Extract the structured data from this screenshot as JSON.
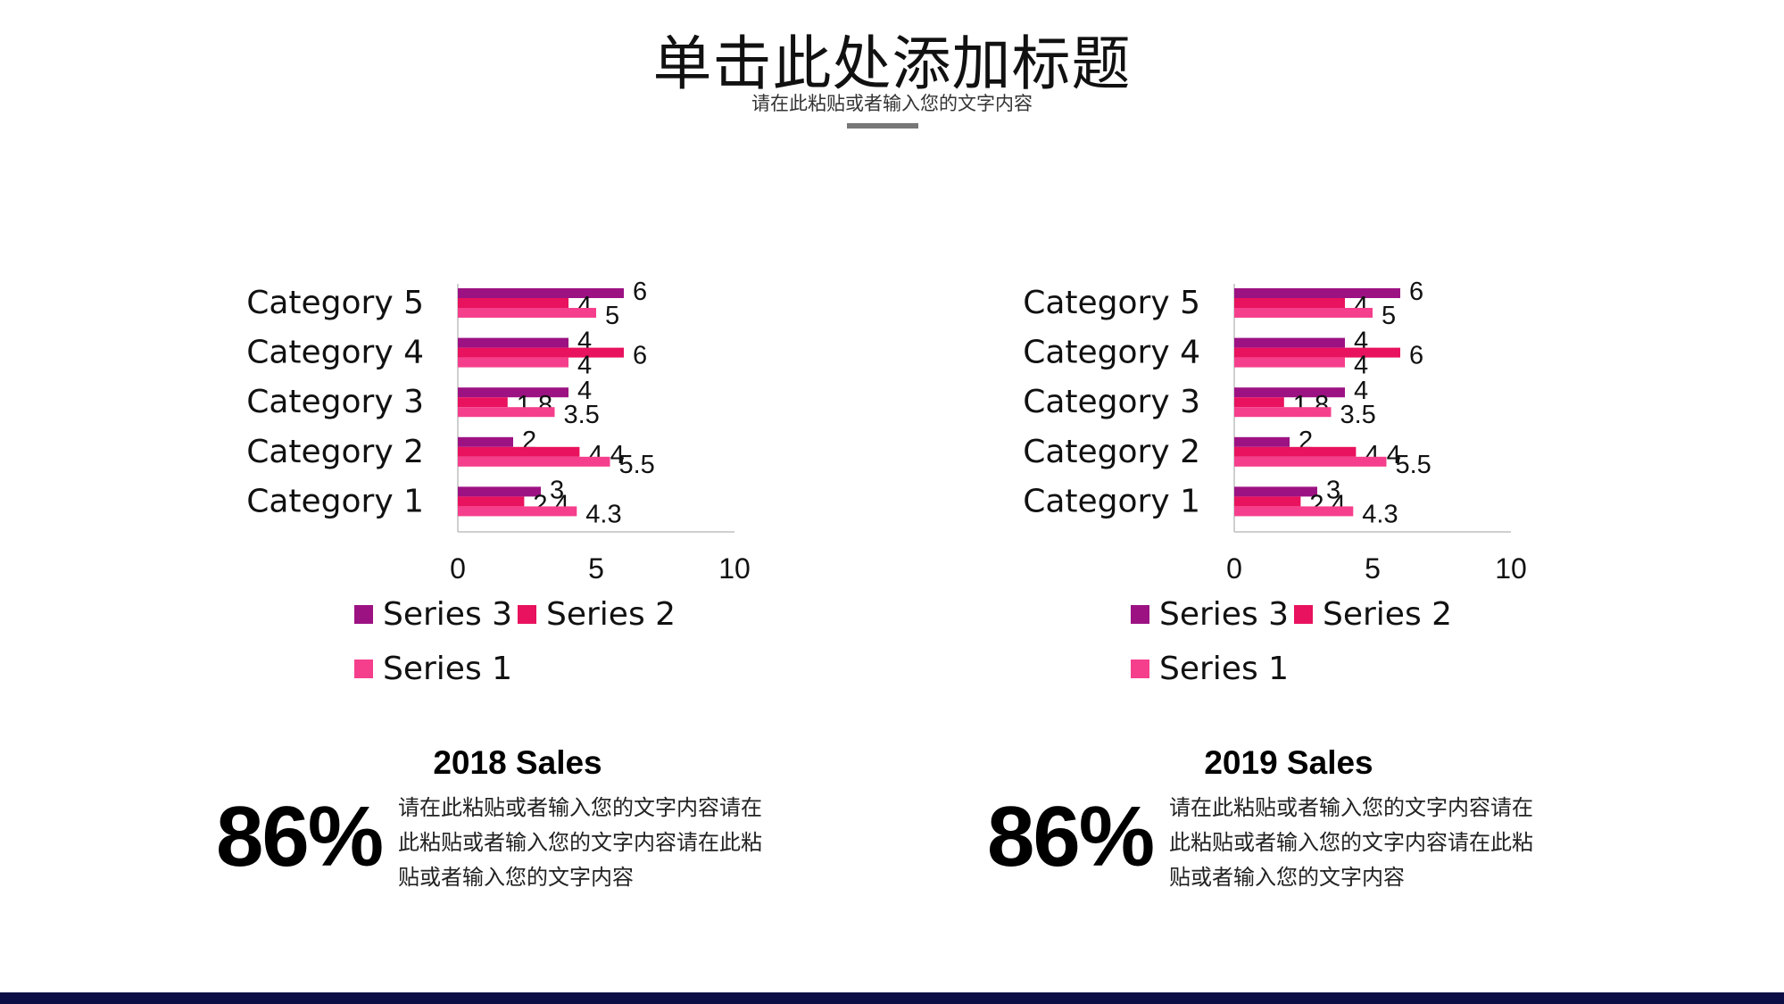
{
  "header": {
    "title": "单击此处添加标题",
    "subtitle": "请在此粘贴或者输入您的文字内容"
  },
  "colors": {
    "series_3": "#9c1283",
    "series_2": "#e8125e",
    "series_1": "#f53f8c",
    "divider": "#777777",
    "footer": "#0c0f45"
  },
  "chart_data": [
    {
      "type": "bar",
      "orientation": "horizontal",
      "categories": [
        "Category 1",
        "Category 2",
        "Category 3",
        "Category 4",
        "Category 5"
      ],
      "series": [
        {
          "name": "Series 3",
          "values": [
            3,
            2,
            4,
            4,
            6
          ]
        },
        {
          "name": "Series 2",
          "values": [
            2.4,
            4.4,
            1.8,
            6,
            4
          ]
        },
        {
          "name": "Series 1",
          "values": [
            4.3,
            5.5,
            3.5,
            4,
            5
          ]
        }
      ],
      "xlim": [
        0,
        10
      ],
      "xticks": [
        0,
        5,
        10
      ],
      "legend": "bottom",
      "grid": false
    },
    {
      "type": "bar",
      "orientation": "horizontal",
      "categories": [
        "Category 1",
        "Category 2",
        "Category 3",
        "Category 4",
        "Category 5"
      ],
      "series": [
        {
          "name": "Series 3",
          "values": [
            3,
            2,
            4,
            4,
            6
          ]
        },
        {
          "name": "Series 2",
          "values": [
            2.4,
            4.4,
            1.8,
            6,
            4
          ]
        },
        {
          "name": "Series 1",
          "values": [
            4.3,
            5.5,
            3.5,
            4,
            5
          ]
        }
      ],
      "xlim": [
        0,
        10
      ],
      "xticks": [
        0,
        5,
        10
      ],
      "legend": "bottom",
      "grid": false
    }
  ],
  "panels": [
    {
      "sales_title": "2018 Sales",
      "percent": "86%",
      "description": "请在此粘贴或者输入您的文字内容请在此粘贴或者输入您的文字内容请在此粘贴或者输入您的文字内容",
      "description_lines": [
        "请在此粘贴或者输入您的文字内容请在",
        "此粘贴或者输入您的文字内容请在此粘",
        "贴或者输入您的文字内容"
      ]
    },
    {
      "sales_title": "2019 Sales",
      "percent": "86%",
      "description": "请在此粘贴或者输入您的文字内容请在此粘贴或者输入您的文字内容请在此粘贴或者输入您的文字内容",
      "description_lines": [
        "请在此粘贴或者输入您的文字内容请在",
        "此粘贴或者输入您的文字内容请在此粘",
        "贴或者输入您的文字内容"
      ]
    }
  ]
}
